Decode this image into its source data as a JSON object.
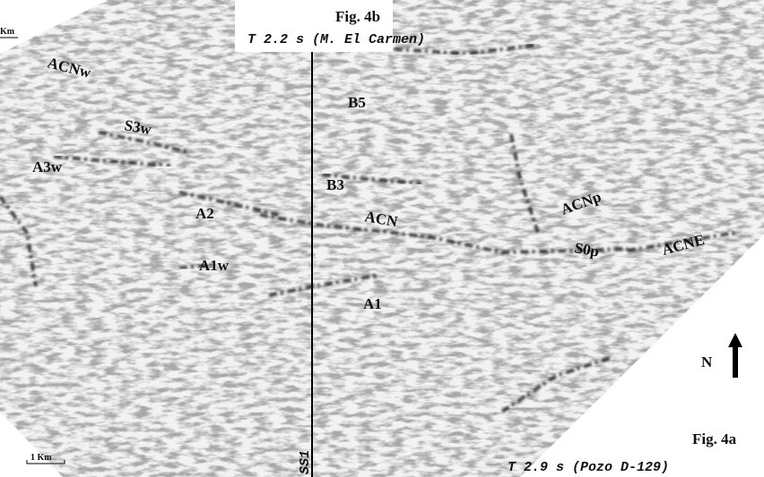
{
  "figure_top": {
    "label": "Fig. 4b",
    "caption": "T 2.2 s (M. El Carmen)",
    "scale": "Km"
  },
  "figure_bottom": {
    "label": "Fig. 4a",
    "caption": "T 2.9 s (Pozo D-129)",
    "scale": "1 Km"
  },
  "north": "N",
  "line_label": "SS1",
  "horizons": [
    "ACNw",
    "S3w",
    "A3w",
    "A2",
    "A1w",
    "B5",
    "B3",
    "ACN",
    "ACNp",
    "S0p",
    "ACNE",
    "A1"
  ]
}
